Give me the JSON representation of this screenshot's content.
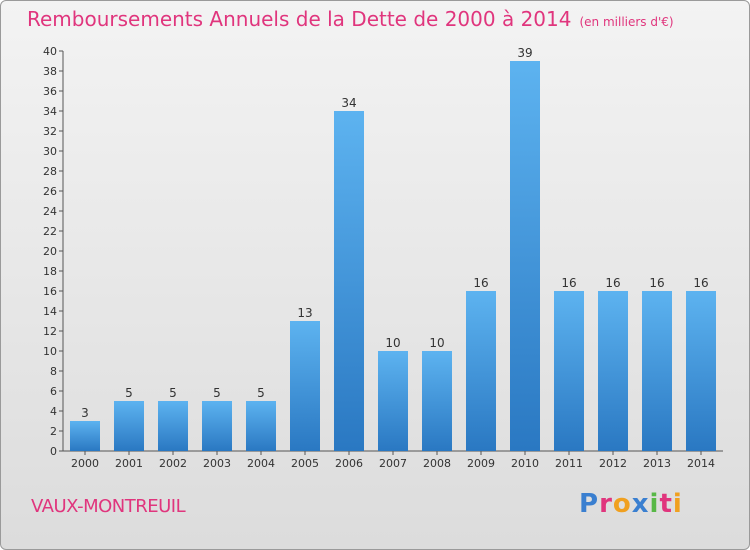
{
  "header": {
    "title": "Remboursements Annuels de la Dette de 2000 à 2014",
    "unit": "(en milliers d'€)"
  },
  "footer": {
    "town": "VAUX-MONTREUIL",
    "logo": "Proxiti",
    "logo_letters": [
      {
        "ch": "P",
        "color": "#3a7fd0"
      },
      {
        "ch": "r",
        "color": "#e0357d"
      },
      {
        "ch": "o",
        "color": "#f0a020"
      },
      {
        "ch": "x",
        "color": "#3a7fd0"
      },
      {
        "ch": "i",
        "color": "#58b847"
      },
      {
        "ch": "t",
        "color": "#e0357d"
      },
      {
        "ch": "i",
        "color": "#f0a020"
      }
    ]
  },
  "chart_data": {
    "type": "bar",
    "title": "Remboursements Annuels de la Dette de 2000 à 2014",
    "categories": [
      "2000",
      "2001",
      "2002",
      "2003",
      "2004",
      "2005",
      "2006",
      "2007",
      "2008",
      "2009",
      "2010",
      "2011",
      "2012",
      "2013",
      "2014"
    ],
    "values": [
      3,
      5,
      5,
      5,
      5,
      13,
      34,
      10,
      10,
      16,
      39,
      16,
      16,
      16,
      16
    ],
    "ylim": [
      0,
      40
    ],
    "ytick_step": 2,
    "grid": false,
    "bar_color": "#4aa3e8",
    "bar_color_dark": "#2f7fc8"
  }
}
